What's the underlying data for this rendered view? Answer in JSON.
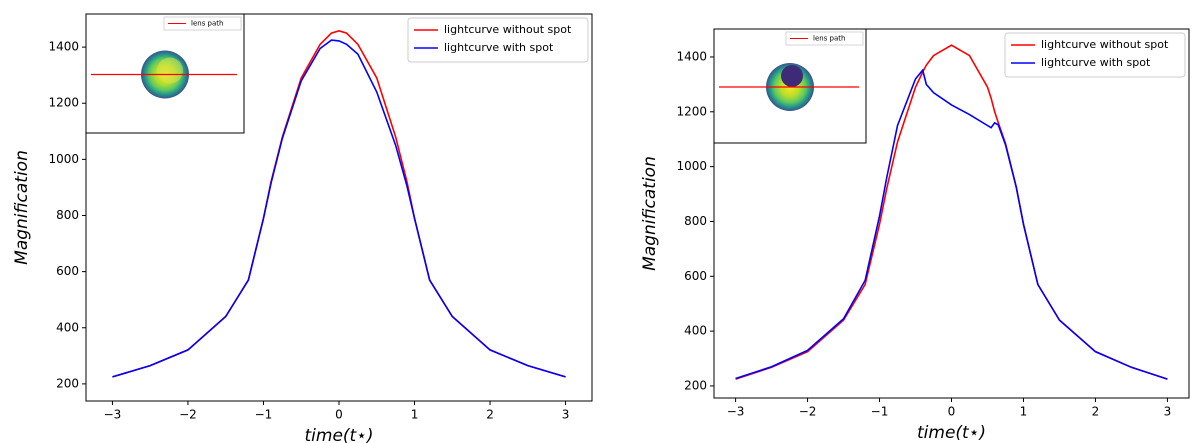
{
  "chart_data": [
    {
      "type": "line",
      "xlabel": "time(t⋆)",
      "ylabel": "Magnification",
      "x": [
        -3,
        -2.5,
        -2,
        -1.5,
        -1.2,
        -1,
        -0.9,
        -0.75,
        -0.5,
        -0.25,
        -0.1,
        0,
        0.1,
        0.25,
        0.5,
        0.75,
        0.9,
        1,
        1.2,
        1.5,
        2,
        2.5,
        3
      ],
      "series": [
        {
          "name": "lightcurve without spot",
          "color": "#ff0000",
          "values": [
            225,
            265,
            321,
            440,
            570,
            790,
            920,
            1080,
            1290,
            1410,
            1450,
            1458,
            1450,
            1410,
            1290,
            1080,
            920,
            790,
            570,
            440,
            321,
            265,
            225
          ]
        },
        {
          "name": "lightcurve with spot",
          "color": "#0000ff",
          "values": [
            225,
            265,
            321,
            440,
            570,
            790,
            915,
            1075,
            1280,
            1395,
            1425,
            1422,
            1410,
            1375,
            1240,
            1050,
            905,
            790,
            570,
            440,
            321,
            265,
            225
          ]
        }
      ],
      "xlim": [
        -3.35,
        3.35
      ],
      "ylim": [
        139,
        1518
      ],
      "xticks": [
        {
          "value": -3,
          "label": "−3"
        },
        {
          "value": -2,
          "label": "−2"
        },
        {
          "value": -1,
          "label": "−1"
        },
        0,
        1,
        2,
        3
      ],
      "yticks": [
        200,
        400,
        600,
        800,
        1000,
        1200,
        1400
      ],
      "legend": "upper right",
      "inset_label": "lens path"
    },
    {
      "type": "line",
      "xlabel": "time(t⋆)",
      "ylabel": "Magnification",
      "x": [
        -3,
        -2.5,
        -2,
        -1.5,
        -1.2,
        -1,
        -0.9,
        -0.75,
        -0.5,
        -0.4,
        -0.35,
        -0.25,
        0,
        0.25,
        0.5,
        0.55,
        0.6,
        0.65,
        0.75,
        0.9,
        1,
        1.2,
        1.5,
        2,
        2.5,
        3
      ],
      "series": [
        {
          "name": "lightcurve without spot",
          "color": "#ff0000",
          "values": [
            225,
            268,
            325,
            440,
            570,
            790,
            920,
            1090,
            1290,
            1345,
            1370,
            1405,
            1443,
            1405,
            1290,
            1250,
            1200,
            1160,
            1085,
            925,
            790,
            570,
            440,
            325,
            268,
            225
          ]
        },
        {
          "name": "lightcurve with spot",
          "color": "#0000ff",
          "values": [
            227,
            270,
            330,
            445,
            585,
            820,
            960,
            1150,
            1320,
            1352,
            1300,
            1270,
            1225,
            1190,
            1150,
            1142,
            1160,
            1152,
            1080,
            925,
            790,
            570,
            440,
            325,
            268,
            225
          ]
        }
      ],
      "xlim": [
        -3.3,
        3.3
      ],
      "ylim": [
        156,
        1502
      ],
      "xticks": [
        {
          "value": -3,
          "label": "−3"
        },
        {
          "value": -2,
          "label": "−2"
        },
        {
          "value": -1,
          "label": "−1"
        },
        0,
        1,
        2,
        3
      ],
      "yticks": [
        200,
        400,
        600,
        800,
        1000,
        1200,
        1400
      ],
      "legend": "upper right",
      "inset_label": "lens path"
    }
  ]
}
